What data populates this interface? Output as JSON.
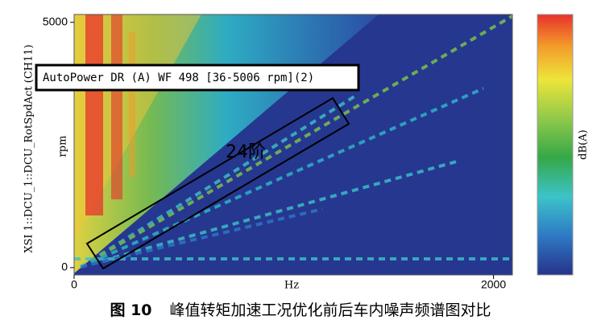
{
  "chart_data": {
    "type": "spectrogram",
    "y_label": "XSI 1::DCU_1::DCU_RotSpdAct (CH11)",
    "y_unit": "rpm",
    "x_label": "Hz",
    "colorbar_label": "dB(A)",
    "legend": "AutoPower DR (A) WF 498 [36-5006 rpm](2)",
    "annotation": "24阶",
    "xlim": [
      0,
      2090
    ],
    "ylim": [
      -150,
      5160
    ],
    "xticks": [
      0,
      2000
    ],
    "yticks": [
      0,
      5000
    ],
    "caption": {
      "figure": "图 10",
      "text": "峰值转矩加速工况优化前后车内噪声频谱图对比"
    }
  }
}
